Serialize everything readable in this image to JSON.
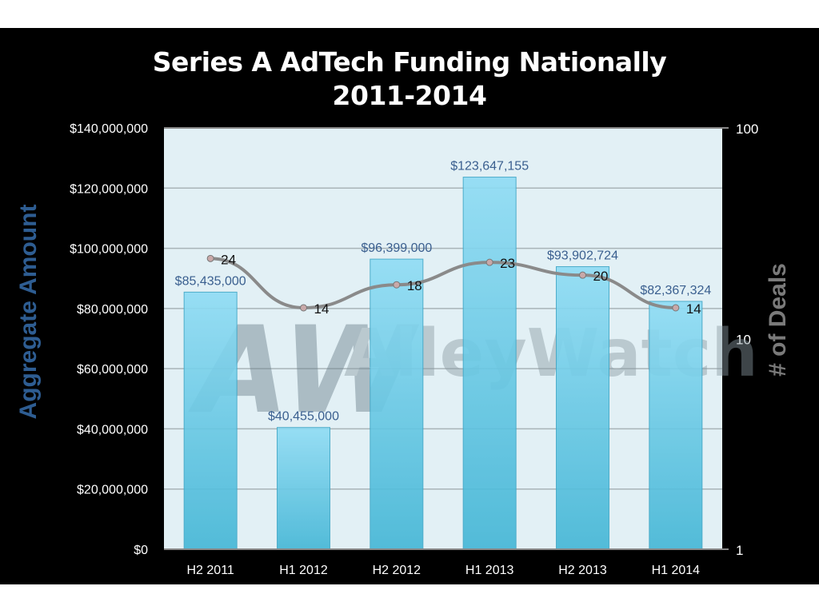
{
  "chart_data": {
    "type": "bar+line",
    "title_line1": "Series A AdTech Funding Nationally",
    "title_line2": "2011-2014",
    "categories": [
      "H2 2011",
      "H1 2012",
      "H2 2012",
      "H1 2013",
      "H2 2013",
      "H1 2014"
    ],
    "series": [
      {
        "name": "Aggregate Amount",
        "type": "bar",
        "axis": "left",
        "values": [
          85435000,
          40455000,
          96399000,
          123647155,
          93902724,
          82367324
        ],
        "labels": [
          "$85,435,000",
          "$40,455,000",
          "$96,399,000",
          "$123,647,155",
          "$93,902,724",
          "$82,367,324"
        ]
      },
      {
        "name": "# of Deals",
        "type": "line",
        "axis": "right",
        "values": [
          24,
          14,
          18,
          23,
          20,
          14
        ],
        "labels": [
          "24",
          "14",
          "18",
          "23",
          "20",
          "14"
        ]
      }
    ],
    "ylabel_left": "Aggregate  Amount",
    "ylabel_right": "# of Deals",
    "ylim_left": [
      0,
      140000000
    ],
    "yticks_left": [
      "$0",
      "$20,000,000",
      "$40,000,000",
      "$60,000,000",
      "$80,000,000",
      "$100,000,000",
      "$120,000,000",
      "$140,000,000"
    ],
    "ylim_right": [
      1,
      100
    ],
    "yscale_right": "log",
    "yticks_right": [
      "1",
      "10",
      "100"
    ],
    "grid": true,
    "watermark": "AlleyWatch",
    "colors": {
      "bar": "#5cc6e4",
      "line": "#8a8a8a",
      "left_title": "#2e5d92",
      "right_title": "#7a7a7a",
      "plot_bg": "#e2f0f5",
      "bar_label": "#3a5f8f"
    }
  }
}
